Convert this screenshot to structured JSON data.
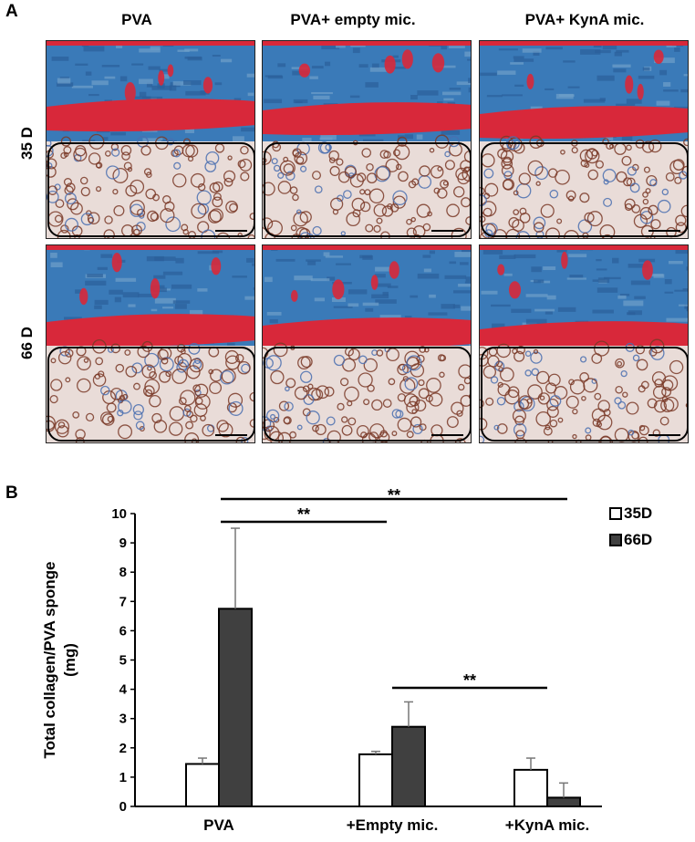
{
  "panel_a_label": "A",
  "panel_b_label": "B",
  "columns": [
    "PVA",
    "PVA+ empty mic.",
    "PVA+ KynA mic."
  ],
  "rows": [
    "35 D",
    "66 D"
  ],
  "colors": {
    "tissue_blue": "#3a7ab8",
    "muscle_red": "#d8283a",
    "sponge_brown": "#7a3a28",
    "bar_35d": "#ffffff",
    "bar_66d": "#404040"
  },
  "chart_data": {
    "type": "bar",
    "categories": [
      "PVA",
      "+Empty mic.",
      "+KynA mic."
    ],
    "series": [
      {
        "name": "35D",
        "values": [
          1.45,
          1.78,
          1.25
        ],
        "errors": [
          0.2,
          0.1,
          0.4
        ]
      },
      {
        "name": "66D",
        "values": [
          6.75,
          2.72,
          0.3
        ],
        "errors": [
          2.75,
          0.85,
          0.5
        ]
      }
    ],
    "ylabel": "Total collagen/PVA sponge (mg)",
    "ylabel_lines": [
      "Total collagen/PVA sponge",
      "(mg)"
    ],
    "ylim": [
      0,
      10
    ],
    "yticks": [
      0,
      1,
      2,
      3,
      4,
      5,
      6,
      7,
      8,
      9,
      10
    ],
    "grid": false,
    "legend": "top-right",
    "significance": [
      {
        "from": "PVA",
        "to": "+Empty mic.",
        "label": "**"
      },
      {
        "from": "PVA",
        "to": "+KynA mic.",
        "label": "**"
      },
      {
        "from": "+Empty mic.",
        "to": "+KynA mic.",
        "label": "**"
      }
    ]
  }
}
